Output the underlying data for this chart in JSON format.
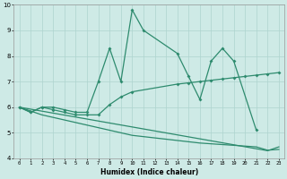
{
  "xlabel": "Humidex (Indice chaleur)",
  "color": "#2e8b6e",
  "bg_color": "#ceeae6",
  "grid_color": "#aed4ce",
  "ylim": [
    4,
    10
  ],
  "xlim": [
    -0.5,
    23.5
  ],
  "yticks": [
    4,
    5,
    6,
    7,
    8,
    9,
    10
  ],
  "xticks": [
    0,
    1,
    2,
    3,
    4,
    5,
    6,
    7,
    8,
    9,
    10,
    11,
    12,
    13,
    14,
    15,
    16,
    17,
    18,
    19,
    20,
    21,
    22,
    23
  ],
  "series": [
    {
      "x": [
        0,
        1,
        2,
        3,
        4,
        5,
        6,
        7,
        8,
        9,
        10,
        11,
        14,
        15,
        16,
        17,
        18,
        19,
        21
      ],
      "y": [
        6.0,
        5.8,
        6.0,
        6.0,
        5.9,
        5.8,
        5.8,
        7.0,
        8.3,
        7.0,
        9.8,
        9.0,
        8.1,
        7.2,
        6.3,
        7.8,
        8.3,
        7.8,
        5.1
      ],
      "marker": true,
      "lw": 0.9
    },
    {
      "x": [
        0,
        1,
        2,
        3,
        4,
        5,
        6,
        7,
        8,
        9,
        10,
        14,
        15,
        16,
        17,
        18,
        19,
        20,
        21,
        22,
        23
      ],
      "y": [
        6.0,
        5.8,
        6.0,
        5.9,
        5.8,
        5.7,
        5.7,
        5.7,
        6.1,
        6.4,
        6.6,
        6.9,
        6.95,
        7.0,
        7.05,
        7.1,
        7.15,
        7.2,
        7.25,
        7.3,
        7.35
      ],
      "marker": true,
      "lw": 0.9
    },
    {
      "x": [
        0,
        1,
        2,
        3,
        4,
        5,
        6,
        7,
        8,
        9,
        10,
        11,
        12,
        13,
        14,
        15,
        16,
        17,
        18,
        19,
        20,
        21,
        22,
        23
      ],
      "y": [
        6.0,
        5.85,
        5.7,
        5.6,
        5.5,
        5.4,
        5.3,
        5.2,
        5.1,
        5.0,
        4.9,
        4.85,
        4.8,
        4.75,
        4.7,
        4.65,
        4.6,
        4.57,
        4.54,
        4.51,
        4.48,
        4.45,
        4.32,
        4.35
      ],
      "marker": false,
      "lw": 0.9
    },
    {
      "x": [
        0,
        22,
        23
      ],
      "y": [
        6.0,
        4.3,
        4.45
      ],
      "marker": false,
      "lw": 0.9
    }
  ]
}
